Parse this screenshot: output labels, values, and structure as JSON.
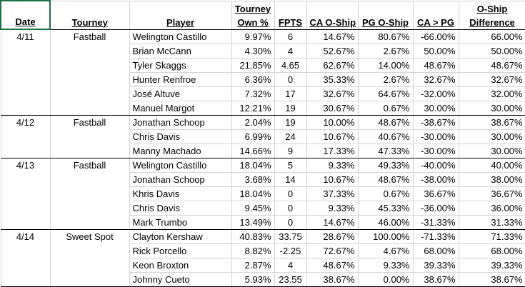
{
  "headers": {
    "date": "Date",
    "tourney": "Tourney",
    "player": "Player",
    "own_line1": "Tourney",
    "own_line2": "Own %",
    "fpts": "FPTS",
    "ca": "CA O-Ship",
    "pg": "PG O-Ship",
    "capg": "CA > PG",
    "diff_line1": "O-Ship",
    "diff_line2": "Difference"
  },
  "groups": [
    {
      "date": "4/11",
      "tourney": "Fastball",
      "rows": [
        {
          "player": "Welington Castillo",
          "own": "9.97%",
          "fpts": "6",
          "ca": "14.67%",
          "pg": "80.67%",
          "capg": "-66.00%",
          "diff": "66.00%"
        },
        {
          "player": "Brian McCann",
          "own": "4.30%",
          "fpts": "4",
          "ca": "52.67%",
          "pg": "2.67%",
          "capg": "50.00%",
          "diff": "50.00%"
        },
        {
          "player": "Tyler Skaggs",
          "own": "21.85%",
          "fpts": "4.65",
          "ca": "62.67%",
          "pg": "14.00%",
          "capg": "48.67%",
          "diff": "48.67%"
        },
        {
          "player": "Hunter Renfroe",
          "own": "6.36%",
          "fpts": "0",
          "ca": "35.33%",
          "pg": "2.67%",
          "capg": "32.67%",
          "diff": "32.67%"
        },
        {
          "player": "José Altuve",
          "own": "7.32%",
          "fpts": "17",
          "ca": "32.67%",
          "pg": "64.67%",
          "capg": "-32.00%",
          "diff": "32.00%"
        },
        {
          "player": "Manuel Margot",
          "own": "12.21%",
          "fpts": "19",
          "ca": "30.67%",
          "pg": "0.67%",
          "capg": "30.00%",
          "diff": "30.00%"
        }
      ]
    },
    {
      "date": "4/12",
      "tourney": "Fastball",
      "rows": [
        {
          "player": "Jonathan Schoop",
          "own": "2.04%",
          "fpts": "19",
          "ca": "10.00%",
          "pg": "48.67%",
          "capg": "-38.67%",
          "diff": "38.67%"
        },
        {
          "player": "Chris Davis",
          "own": "6.99%",
          "fpts": "24",
          "ca": "10.67%",
          "pg": "40.67%",
          "capg": "-30.00%",
          "diff": "30.00%"
        },
        {
          "player": "Manny Machado",
          "own": "14.66%",
          "fpts": "9",
          "ca": "17.33%",
          "pg": "47.33%",
          "capg": "-30.00%",
          "diff": "30.00%"
        }
      ]
    },
    {
      "date": "4/13",
      "tourney": "Fastball",
      "rows": [
        {
          "player": "Welington Castillo",
          "own": "18.04%",
          "fpts": "5",
          "ca": "9.33%",
          "pg": "49.33%",
          "capg": "-40.00%",
          "diff": "40.00%"
        },
        {
          "player": "Jonathan Schoop",
          "own": "3.68%",
          "fpts": "14",
          "ca": "10.67%",
          "pg": "48.67%",
          "capg": "-38.00%",
          "diff": "38.00%"
        },
        {
          "player": "Khris Davis",
          "own": "18.04%",
          "fpts": "0",
          "ca": "37.33%",
          "pg": "0.67%",
          "capg": "36.67%",
          "diff": "36.67%"
        },
        {
          "player": "Chris Davis",
          "own": "9.45%",
          "fpts": "0",
          "ca": "9.33%",
          "pg": "45.33%",
          "capg": "-36.00%",
          "diff": "36.00%"
        },
        {
          "player": "Mark Trumbo",
          "own": "13.49%",
          "fpts": "0",
          "ca": "14.67%",
          "pg": "46.00%",
          "capg": "-31.33%",
          "diff": "31.33%"
        }
      ]
    },
    {
      "date": "4/14",
      "tourney": "Sweet Spot",
      "rows": [
        {
          "player": "Clayton Kershaw",
          "own": "40.83%",
          "fpts": "33.75",
          "ca": "28.67%",
          "pg": "100.00%",
          "capg": "-71.33%",
          "diff": "71.33%"
        },
        {
          "player": "Rick Porcello",
          "own": "8.82%",
          "fpts": "-2.25",
          "ca": "72.67%",
          "pg": "4.67%",
          "capg": "68.00%",
          "diff": "68.00%"
        },
        {
          "player": "Keon Broxton",
          "own": "2.87%",
          "fpts": "4",
          "ca": "48.67%",
          "pg": "9.33%",
          "capg": "39.33%",
          "diff": "39.33%"
        },
        {
          "player": "Johnny Cueto",
          "own": "5.93%",
          "fpts": "23.55",
          "ca": "38.67%",
          "pg": "0.00%",
          "capg": "38.67%",
          "diff": "38.67%"
        }
      ]
    }
  ]
}
